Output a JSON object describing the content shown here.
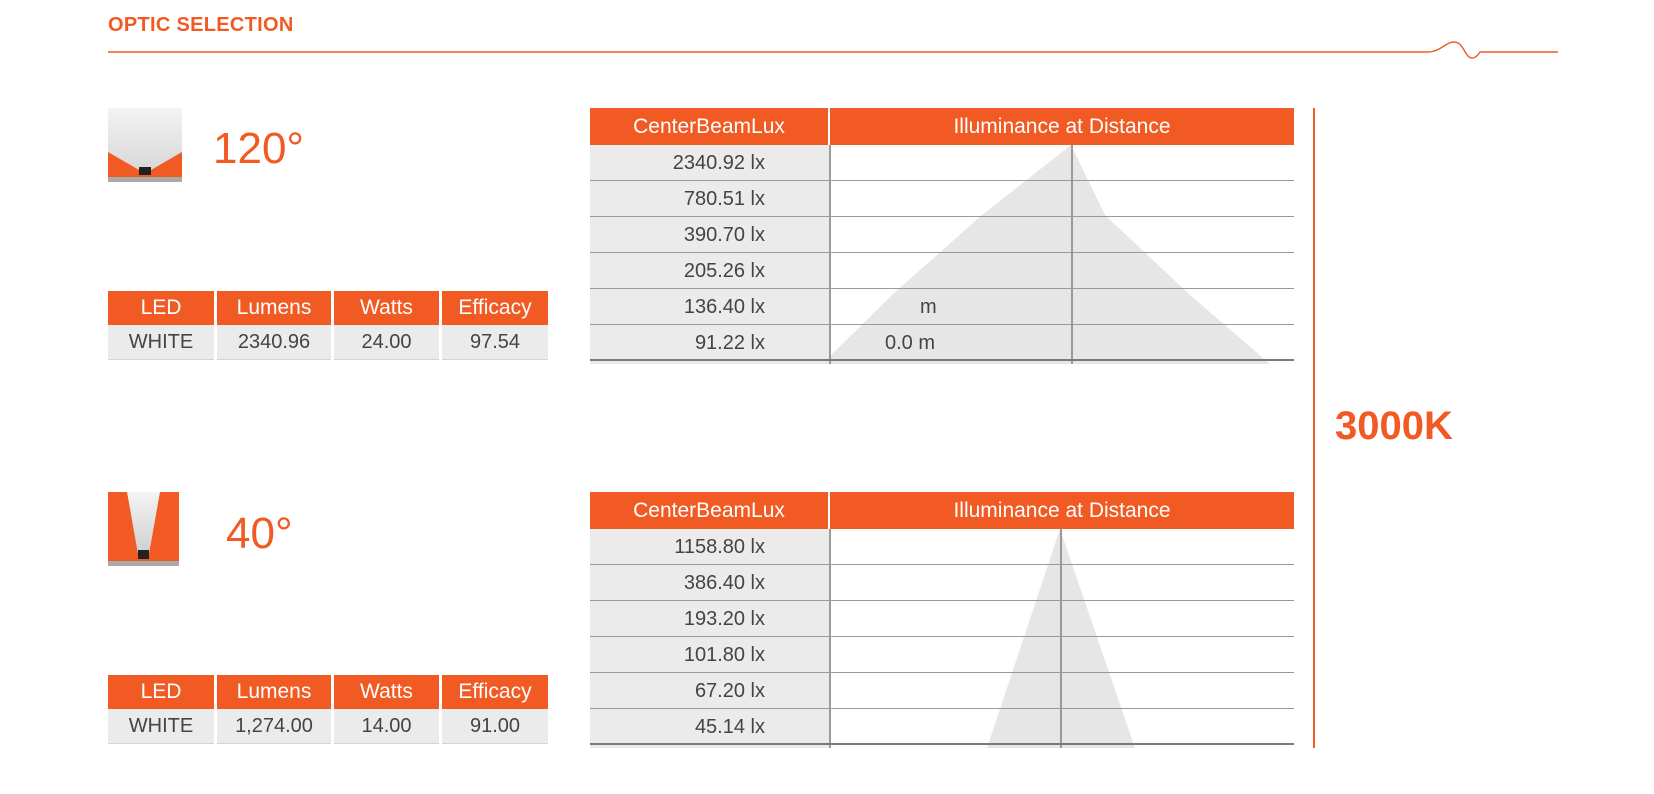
{
  "header": {
    "title": "OPTIC SELECTION"
  },
  "cct": "3000K",
  "optics": [
    {
      "angle": "120°",
      "spec_headers": [
        "LED",
        "Lumens",
        "Watts",
        "Efficacy"
      ],
      "spec_values": [
        "WHITE",
        "2340.96",
        "24.00",
        "97.54"
      ],
      "lux_headers": [
        "CenterBeamLux",
        "Illuminance at Distance"
      ],
      "lux_values": [
        "2340.92 lx",
        "780.51 lx",
        "390.70 lx",
        "205.26 lx",
        "136.40 lx",
        "91.22 lx"
      ],
      "distances": [
        "",
        "",
        "",
        "",
        "m",
        "0.0 m"
      ]
    },
    {
      "angle": "40°",
      "spec_headers": [
        "LED",
        "Lumens",
        "Watts",
        "Efficacy"
      ],
      "spec_values": [
        "WHITE",
        "1,274.00",
        "14.00",
        "91.00"
      ],
      "lux_headers": [
        "CenterBeamLux",
        "Illuminance at Distance"
      ],
      "lux_values": [
        "1158.80 lx",
        "386.40 lx",
        "193.20 lx",
        "101.80 lx",
        "67.20 lx",
        "45.14 lx"
      ],
      "distances": [
        "",
        "",
        "",
        "",
        "",
        ""
      ]
    }
  ],
  "colors": {
    "accent": "#f15a22",
    "cell": "#ebebeb",
    "beam": "#e6e6e6"
  }
}
